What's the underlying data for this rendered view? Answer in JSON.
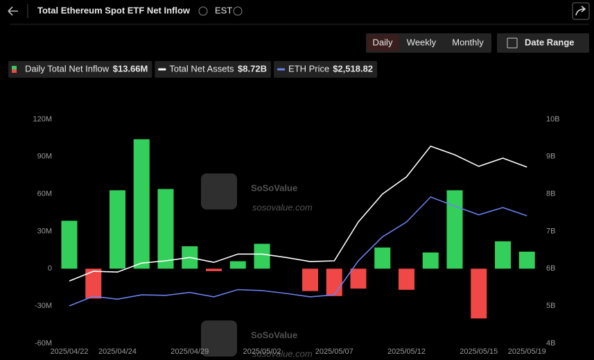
{
  "header": {
    "title": "Total Ethereum Spot ETF Net Inflow",
    "timezone": "EST"
  },
  "controls": {
    "periods": [
      "Daily",
      "Weekly",
      "Monthly"
    ],
    "active": "Daily",
    "date_range": "Date Range"
  },
  "watermark": {
    "brand": "SoSoValue",
    "site": "sosovalue.com"
  },
  "chart_data": {
    "type": "bar-line",
    "categories": [
      "2025/04/22",
      null,
      "2025/04/24",
      null,
      null,
      "2025/04/29",
      null,
      null,
      "2025/05/02",
      null,
      null,
      "2025/05/07",
      null,
      null,
      "2025/05/12",
      null,
      null,
      "2025/05/15",
      null,
      "2025/05/19"
    ],
    "series": [
      {
        "name": "Daily Total Net Inflow",
        "summary": "$13.66M",
        "type": "bar",
        "positive_color": "#34cf5b",
        "negative_color": "#f04747",
        "values": [
          38.5,
          -24,
          63,
          104,
          64,
          18,
          -2,
          6,
          20,
          0,
          -18,
          -22,
          -16,
          17,
          -17,
          13,
          63,
          -40,
          22,
          13.66
        ]
      },
      {
        "name": "Total Net Assets",
        "summary": "$8.72B",
        "type": "line",
        "axis": "y2",
        "color": "#ffffff",
        "values": [
          5.67,
          5.93,
          5.91,
          6.15,
          6.21,
          6.3,
          6.17,
          6.39,
          6.39,
          6.3,
          6.19,
          6.21,
          7.25,
          8.0,
          8.46,
          9.28,
          9.05,
          8.74,
          8.96,
          8.72
        ]
      },
      {
        "name": "ETH Price",
        "summary": "$2,518.82",
        "type": "line",
        "axis": "hidden",
        "color": "#6b80ee",
        "values": [
          1580,
          1680,
          1650,
          1695,
          1690,
          1720,
          1675,
          1750,
          1740,
          1710,
          1675,
          1695,
          2050,
          2300,
          2455,
          2715,
          2620,
          2530,
          2605,
          2518.82
        ]
      }
    ],
    "ylim": [
      -60,
      120
    ],
    "yticks": [
      {
        "value": -60,
        "label": "-60M"
      },
      {
        "value": -30,
        "label": "-30M"
      },
      0,
      {
        "value": 30,
        "label": "30M"
      },
      {
        "value": 60,
        "label": "60M"
      },
      {
        "value": 90,
        "label": "90M"
      },
      {
        "value": 120,
        "label": "120M"
      }
    ],
    "y2lim": [
      4,
      10
    ],
    "y2ticks": [
      {
        "value": 4,
        "label": "4B"
      },
      {
        "value": 5,
        "label": "5B"
      },
      {
        "value": 6,
        "label": "6B"
      },
      {
        "value": 7,
        "label": "7B"
      },
      {
        "value": 8,
        "label": "8B"
      },
      {
        "value": 9,
        "label": "9B"
      },
      {
        "value": 10,
        "label": "10B"
      }
    ],
    "grid": false
  }
}
